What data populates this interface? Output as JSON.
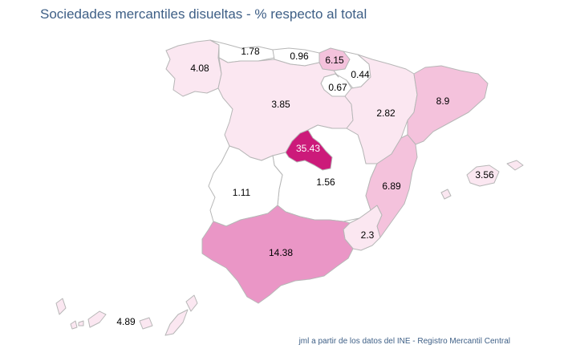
{
  "title": "Sociedades mercantiles disueltas - % respecto al total",
  "credit": "jml a partir de los datos del INE - Registro Mercantil Central",
  "colors": {
    "c0": "#ffffff",
    "c1": "#fbe7f1",
    "c2": "#f4c2dc",
    "c3": "#ea96c6",
    "c4": "#cc1a7a",
    "border": "#b7b7b7"
  },
  "chart_data": {
    "type": "choropleth",
    "unit": "%",
    "regions": [
      {
        "id": "galicia",
        "value": 4.08,
        "label": "4.08"
      },
      {
        "id": "asturias",
        "value": 1.78,
        "label": "1.78"
      },
      {
        "id": "cantabria",
        "value": 0.96,
        "label": "0.96"
      },
      {
        "id": "pais-vasco",
        "value": 6.15,
        "label": "6.15"
      },
      {
        "id": "navarra",
        "value": 0.44,
        "label": "0.44"
      },
      {
        "id": "la-rioja",
        "value": 0.67,
        "label": "0.67"
      },
      {
        "id": "castilla-y-leon",
        "value": 3.85,
        "label": "3.85"
      },
      {
        "id": "aragon",
        "value": 2.82,
        "label": "2.82"
      },
      {
        "id": "cataluna",
        "value": 8.9,
        "label": "8.9"
      },
      {
        "id": "madrid",
        "value": 35.43,
        "label": "35.43"
      },
      {
        "id": "extremadura",
        "value": 1.11,
        "label": "1.11"
      },
      {
        "id": "castilla-la-mancha",
        "value": 1.56,
        "label": "1.56"
      },
      {
        "id": "comunidad-valenciana",
        "value": 6.89,
        "label": "6.89"
      },
      {
        "id": "baleares",
        "value": 3.56,
        "label": "3.56"
      },
      {
        "id": "murcia",
        "value": 2.3,
        "label": "2.3"
      },
      {
        "id": "andalucia",
        "value": 14.38,
        "label": "14.38"
      },
      {
        "id": "canarias",
        "value": 4.89,
        "label": "4.89"
      }
    ]
  }
}
